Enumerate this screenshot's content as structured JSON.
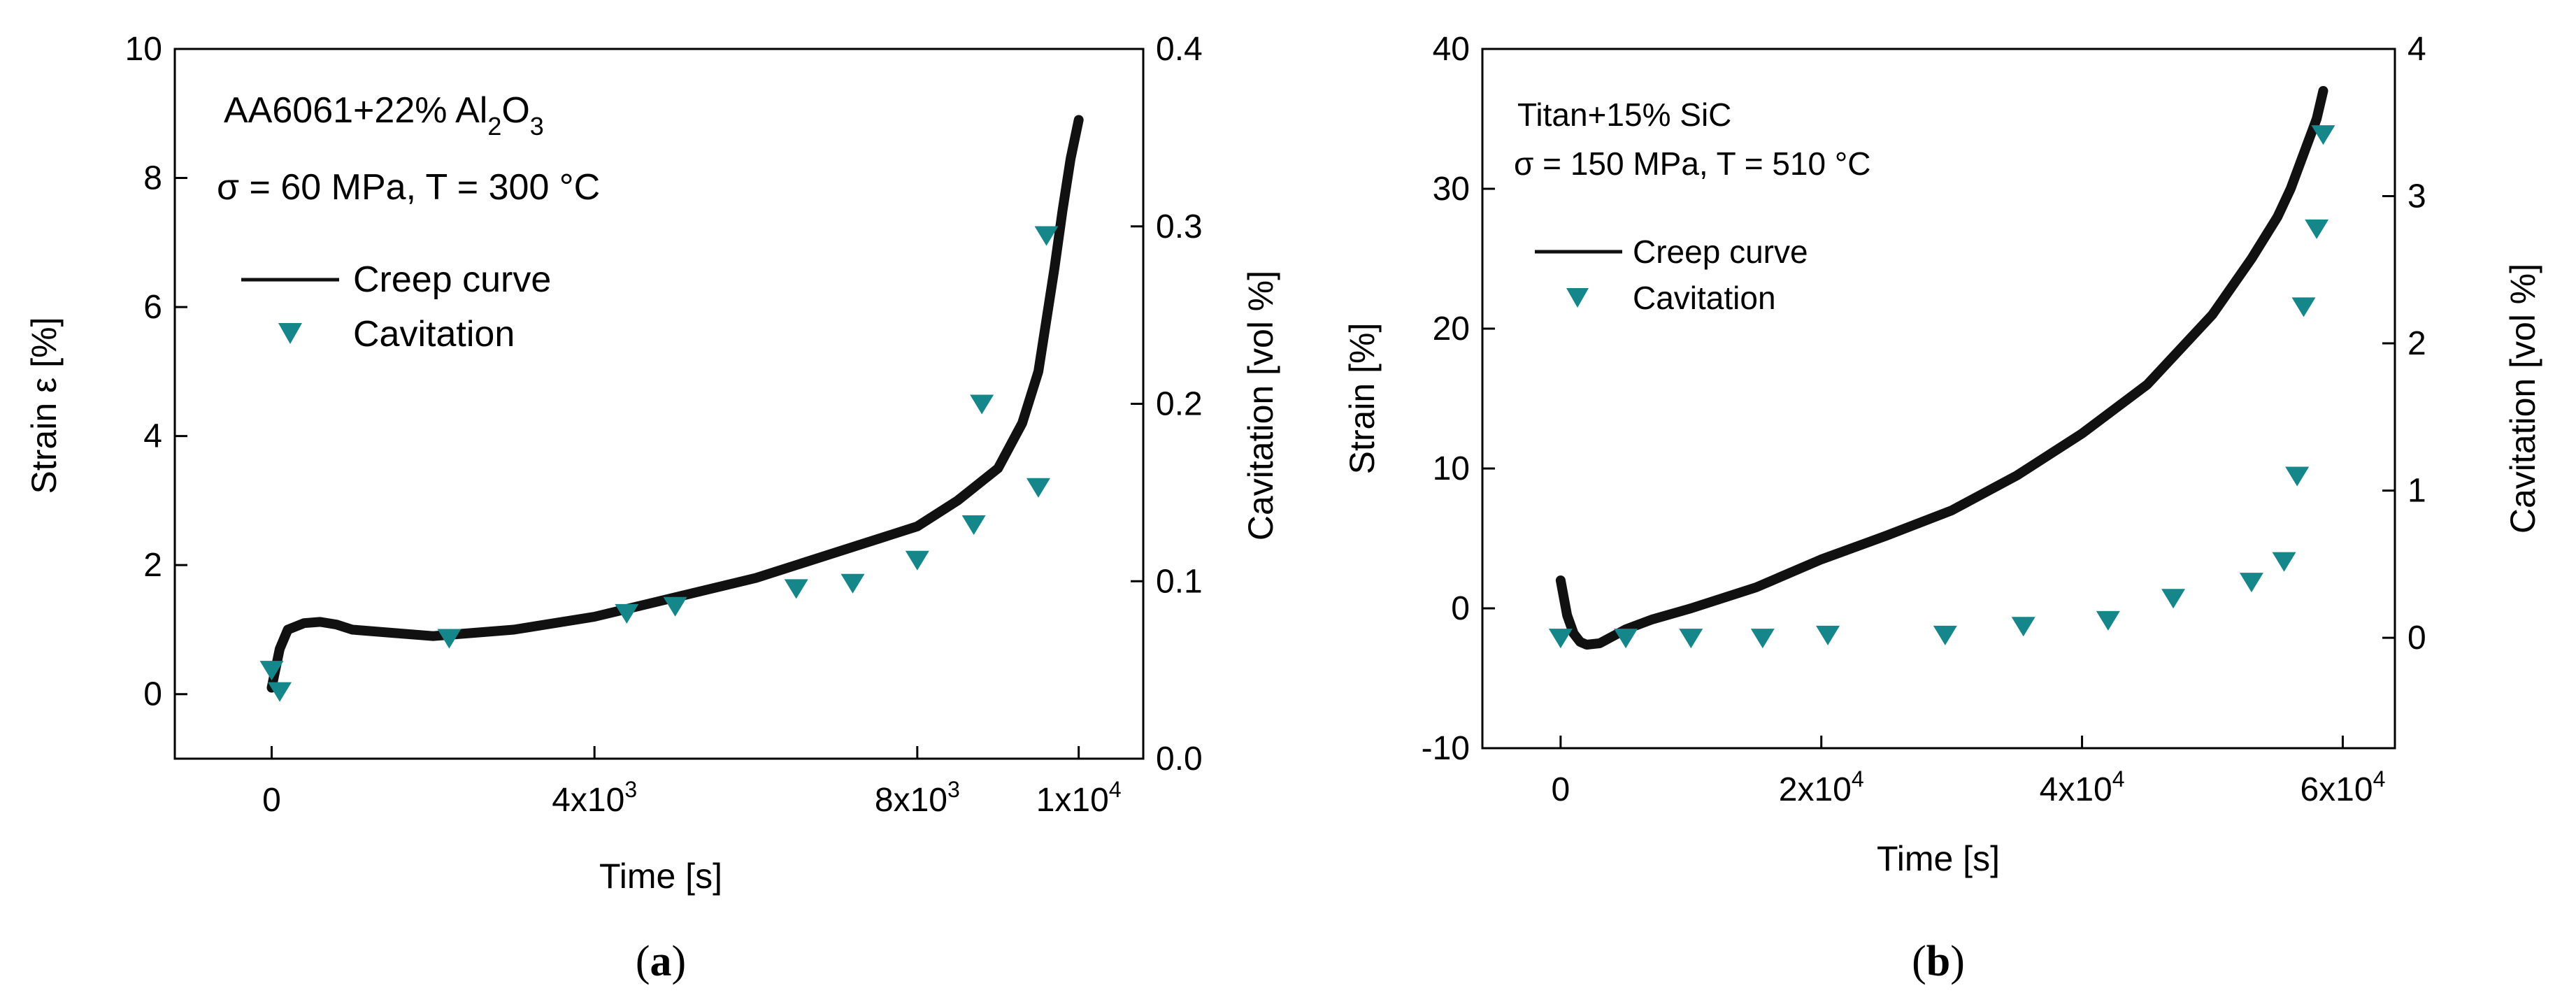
{
  "chart_data": [
    {
      "type": "scatter",
      "panel_label": "a",
      "annotation": {
        "material": "AA6061+22% Al",
        "material_sub1": "2",
        "material_mid": "O",
        "material_sub2": "3",
        "conditions": "σ = 60 MPa, T = 300 °C"
      },
      "xlabel": "Time [s]",
      "ylabel": "Strain ε [%]",
      "y2label": "Cavitation [vol %]",
      "xlim": [
        -1200,
        10800
      ],
      "ylim": [
        -1,
        10
      ],
      "y2lim": [
        0.0,
        0.4
      ],
      "xticks": [
        {
          "value": 0,
          "label": "0",
          "exp": ""
        },
        {
          "value": 4000,
          "label": "4x10",
          "exp": "3"
        },
        {
          "value": 8000,
          "label": "8x10",
          "exp": "3"
        },
        {
          "value": 10000,
          "label": "1x10",
          "exp": "4"
        }
      ],
      "yticks": [
        {
          "value": 0,
          "label": "0"
        },
        {
          "value": 2,
          "label": "2"
        },
        {
          "value": 4,
          "label": "4"
        },
        {
          "value": 6,
          "label": "6"
        },
        {
          "value": 8,
          "label": "8"
        },
        {
          "value": 10,
          "label": "10"
        }
      ],
      "y2ticks": [
        {
          "value": 0.0,
          "label": "0.0"
        },
        {
          "value": 0.1,
          "label": "0.1"
        },
        {
          "value": 0.2,
          "label": "0.2"
        },
        {
          "value": 0.3,
          "label": "0.3"
        },
        {
          "value": 0.4,
          "label": "0.4"
        }
      ],
      "legend": {
        "position": "top-left",
        "creep": "Creep curve",
        "cavitation": "Cavitation"
      },
      "series": [
        {
          "name": "Creep curve",
          "axis": "left",
          "x": [
            0,
            100,
            200,
            400,
            600,
            800,
            1000,
            1500,
            2000,
            3000,
            4000,
            5000,
            6000,
            7000,
            8000,
            8500,
            9000,
            9300,
            9500,
            9600,
            9700,
            9800,
            9900,
            10000
          ],
          "y": [
            0.1,
            0.7,
            1.0,
            1.1,
            1.12,
            1.08,
            1.0,
            0.95,
            0.9,
            1.0,
            1.2,
            1.5,
            1.8,
            2.2,
            2.6,
            3.0,
            3.5,
            4.2,
            5.0,
            5.8,
            6.6,
            7.5,
            8.3,
            8.9
          ]
        },
        {
          "name": "Cavitation",
          "axis": "right",
          "x": [
            0,
            100,
            2200,
            4400,
            5000,
            6500,
            7200,
            8000,
            8700,
            9500,
            8800,
            9600
          ],
          "y": [
            0.05,
            0.038,
            0.068,
            0.082,
            0.086,
            0.096,
            0.099,
            0.112,
            0.132,
            0.153,
            0.2,
            0.295
          ]
        }
      ]
    },
    {
      "type": "scatter",
      "panel_label": "b",
      "annotation": {
        "material": "Titan+15% SiC",
        "conditions": "σ = 150 MPa, T = 510 °C"
      },
      "xlabel": "Time [s]",
      "ylabel": "Strain [%]",
      "y2label": "Cavitation [vol %]",
      "xlim": [
        -6000,
        64000
      ],
      "ylim": [
        -10,
        40
      ],
      "y2lim": [
        -0.75,
        4
      ],
      "xticks": [
        {
          "value": 0,
          "label": "0",
          "exp": ""
        },
        {
          "value": 20000,
          "label": "2x10",
          "exp": "4"
        },
        {
          "value": 40000,
          "label": "4x10",
          "exp": "4"
        },
        {
          "value": 60000,
          "label": "6x10",
          "exp": "4"
        }
      ],
      "yticks": [
        {
          "value": -10,
          "label": "-10"
        },
        {
          "value": 0,
          "label": "0"
        },
        {
          "value": 10,
          "label": "10"
        },
        {
          "value": 20,
          "label": "20"
        },
        {
          "value": 30,
          "label": "30"
        },
        {
          "value": 40,
          "label": "40"
        }
      ],
      "y2ticks": [
        {
          "value": 0,
          "label": "0"
        },
        {
          "value": 1,
          "label": "1"
        },
        {
          "value": 2,
          "label": "2"
        },
        {
          "value": 3,
          "label": "3"
        },
        {
          "value": 4,
          "label": "4"
        }
      ],
      "legend": {
        "position": "top-left",
        "creep": "Creep curve",
        "cavitation": "Cavitation"
      },
      "series": [
        {
          "name": "Creep curve",
          "axis": "left",
          "x": [
            0,
            200,
            500,
            1000,
            1500,
            2000,
            3000,
            4000,
            5000,
            7000,
            10000,
            15000,
            20000,
            25000,
            30000,
            35000,
            40000,
            45000,
            50000,
            53000,
            55000,
            56000,
            57000,
            58000,
            58500
          ],
          "y": [
            2.0,
            1.0,
            -0.5,
            -1.8,
            -2.4,
            -2.6,
            -2.5,
            -2.0,
            -1.5,
            -0.8,
            0.0,
            1.5,
            3.5,
            5.2,
            7.0,
            9.5,
            12.5,
            16.0,
            21.0,
            25.0,
            28.0,
            30.0,
            32.5,
            35.0,
            37.0
          ]
        },
        {
          "name": "Cavitation",
          "axis": "right",
          "x": [
            0,
            5000,
            10000,
            15500,
            20500,
            29500,
            35500,
            42000,
            47000,
            53000,
            55500,
            56500,
            57000,
            58000,
            58500
          ],
          "y": [
            0.0,
            0.0,
            0.0,
            0.0,
            0.02,
            0.02,
            0.08,
            0.12,
            0.27,
            0.38,
            0.52,
            1.1,
            2.25,
            2.78,
            3.42
          ]
        }
      ]
    }
  ]
}
